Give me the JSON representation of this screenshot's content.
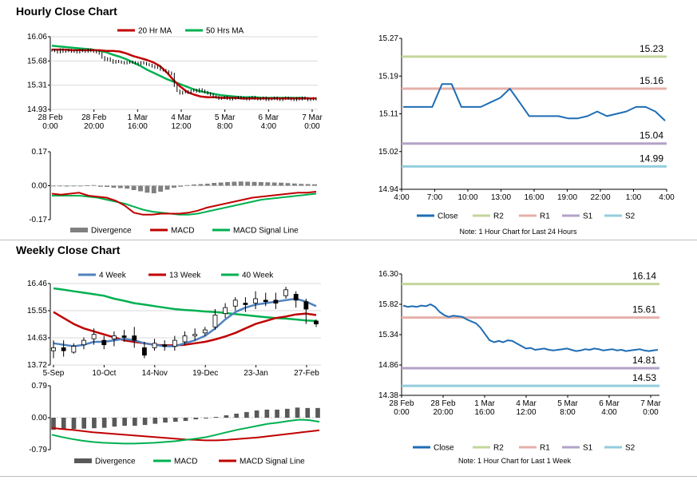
{
  "titles": {
    "hourly": "Hourly Close Chart",
    "weekly": "Weekly Close Chart"
  },
  "colors": {
    "price": "#000000",
    "ma20": "#c00000",
    "ma50": "#00b050",
    "close": "#1f6db4",
    "r2": "#c3d69b",
    "r1": "#e6b0aa",
    "s1": "#b3a2c7",
    "s2": "#93cddd",
    "divergence": "#808080",
    "divergence_dark": "#595959",
    "week4": "#4f81bd"
  },
  "chart_data": [
    {
      "id": "hourly_price",
      "type": "candlestick",
      "ylim": [
        14.93,
        16.06
      ],
      "yticks": [
        "16.06",
        "15.68",
        "15.31",
        "14.93"
      ],
      "xticks": [
        "28 Feb\n0:00",
        "28 Feb\n20:00",
        "1 Mar\n16:00",
        "4 Mar\n12:00",
        "5 Mar\n8:00",
        "6 Mar\n4:00",
        "7 Mar\n0:00"
      ],
      "legend": [
        "20 Hr MA",
        "50 Hrs MA"
      ],
      "price": [
        15.85,
        15.84,
        15.82,
        15.86,
        15.83,
        15.84,
        15.85,
        15.83,
        15.84,
        15.82,
        15.85,
        15.84,
        15.83,
        15.86,
        15.84,
        15.83,
        15.82,
        15.8,
        15.74,
        15.7,
        15.72,
        15.69,
        15.66,
        15.68,
        15.67,
        15.66,
        15.65,
        15.66,
        15.67,
        15.66,
        15.65,
        15.64,
        15.66,
        15.65,
        15.63,
        15.62,
        15.6,
        15.58,
        15.59,
        15.55,
        15.54,
        15.52,
        15.5,
        15.48,
        15.3,
        15.22,
        15.18,
        15.2,
        15.21,
        15.19,
        15.22,
        15.23,
        15.21,
        15.24,
        15.22,
        15.2,
        15.18,
        15.16,
        15.13,
        15.12,
        15.1,
        15.11,
        15.12,
        15.1,
        15.09,
        15.1,
        15.11,
        15.12,
        15.11,
        15.1,
        15.09,
        15.11,
        15.12,
        15.1,
        15.09,
        15.1,
        15.11,
        15.08,
        15.09,
        15.1,
        15.11,
        15.09,
        15.08,
        15.1,
        15.11,
        15.1,
        15.09,
        15.08,
        15.1,
        15.09,
        15.11,
        15.1,
        15.08,
        15.09,
        15.1,
        15.09
      ],
      "ma20": [
        15.86,
        15.86,
        15.86,
        15.85,
        15.85,
        15.85,
        15.85,
        15.85,
        15.84,
        15.84,
        15.83,
        15.8,
        15.76,
        15.73,
        15.7,
        15.66,
        15.6,
        15.5,
        15.38,
        15.28,
        15.2,
        15.16,
        15.13,
        15.12,
        15.12,
        15.11,
        15.11,
        15.11,
        15.1,
        15.1,
        15.1,
        15.1,
        15.1,
        15.1,
        15.1,
        15.1,
        15.1,
        15.1,
        15.1,
        15.1
      ],
      "ma50": [
        15.92,
        15.91,
        15.9,
        15.89,
        15.88,
        15.87,
        15.86,
        15.84,
        15.82,
        15.78,
        15.75,
        15.71,
        15.66,
        15.61,
        15.55,
        15.5,
        15.45,
        15.4,
        15.36,
        15.32,
        15.28,
        15.24,
        15.21,
        15.19,
        15.17,
        15.15,
        15.14,
        15.13,
        15.12,
        15.12,
        15.12,
        15.11,
        15.11,
        15.11,
        15.11,
        15.11,
        15.11,
        15.11,
        15.1,
        15.1
      ]
    },
    {
      "id": "hourly_macd",
      "type": "macd",
      "ylim": [
        -0.17,
        0.17
      ],
      "yticks": [
        "0.17",
        "0.00",
        "-0.17"
      ],
      "legend": [
        "Divergence",
        "MACD",
        "MACD Signal Line"
      ],
      "divergence": [
        0.0,
        0.0,
        -0.004,
        -0.003,
        0.0,
        0.002,
        0.003,
        -0.005,
        -0.006,
        -0.01,
        -0.012,
        -0.015,
        -0.022,
        -0.028,
        -0.035,
        -0.038,
        -0.03,
        -0.02,
        -0.01,
        -0.005,
        0.003,
        0.006,
        0.008,
        0.01,
        0.014,
        0.016,
        0.018,
        0.02,
        0.021,
        0.02,
        0.019,
        0.018,
        0.017,
        0.016,
        0.015,
        0.013,
        0.011,
        0.009,
        0.008,
        0.007
      ],
      "macd": [
        -0.04,
        -0.045,
        -0.04,
        -0.035,
        -0.05,
        -0.055,
        -0.06,
        -0.075,
        -0.1,
        -0.135,
        -0.145,
        -0.145,
        -0.14,
        -0.14,
        -0.14,
        -0.135,
        -0.125,
        -0.11,
        -0.1,
        -0.09,
        -0.08,
        -0.07,
        -0.06,
        -0.055,
        -0.05,
        -0.045,
        -0.04,
        -0.035,
        -0.035,
        -0.03
      ],
      "signal": [
        -0.05,
        -0.05,
        -0.05,
        -0.05,
        -0.055,
        -0.06,
        -0.07,
        -0.08,
        -0.09,
        -0.105,
        -0.12,
        -0.13,
        -0.135,
        -0.14,
        -0.145,
        -0.145,
        -0.14,
        -0.13,
        -0.12,
        -0.11,
        -0.1,
        -0.09,
        -0.08,
        -0.07,
        -0.065,
        -0.06,
        -0.055,
        -0.05,
        -0.045,
        -0.04
      ]
    },
    {
      "id": "hourly_levels",
      "type": "line",
      "ylim": [
        14.94,
        15.27
      ],
      "yticks": [
        "15.27",
        "15.19",
        "15.11",
        "15.02",
        "14.94"
      ],
      "xticks": [
        "4:00",
        "7:00",
        "10:00",
        "13:00",
        "16:00",
        "19:00",
        "22:00",
        "1:00",
        "4:00"
      ],
      "close": [
        15.12,
        15.12,
        15.12,
        15.12,
        15.17,
        15.17,
        15.12,
        15.12,
        15.12,
        15.13,
        15.14,
        15.16,
        15.13,
        15.1,
        15.1,
        15.1,
        15.1,
        15.095,
        15.095,
        15.1,
        15.11,
        15.1,
        15.105,
        15.11,
        15.12,
        15.12,
        15.11,
        15.09
      ],
      "levels": {
        "R2": 15.23,
        "R1": 15.16,
        "S1": 15.04,
        "S2": 14.99
      },
      "level_labels": {
        "R2": "15.23",
        "R1": "15.16",
        "S1": "15.04",
        "S2": "14.99"
      },
      "legend": [
        "Close",
        "R2",
        "R1",
        "S1",
        "S2"
      ],
      "note": "Note: 1 Hour Chart for Last 24 Hours"
    },
    {
      "id": "weekly_price",
      "type": "candlestick",
      "ylim": [
        13.72,
        16.46
      ],
      "yticks": [
        "16.46",
        "15.55",
        "14.63",
        "13.72"
      ],
      "xticks": [
        "5-Sep",
        "10-Oct",
        "14-Nov",
        "19-Dec",
        "23-Jan",
        "27-Feb"
      ],
      "legend": [
        "4 Week",
        "13 Week",
        "40 Week"
      ],
      "candles": [
        {
          "o": 14.2,
          "c": 14.3,
          "h": 14.55,
          "l": 13.95
        },
        {
          "o": 14.3,
          "c": 14.2,
          "h": 14.55,
          "l": 14.0
        },
        {
          "o": 14.15,
          "c": 14.35,
          "h": 14.45,
          "l": 14.1
        },
        {
          "o": 14.4,
          "c": 14.55,
          "h": 14.65,
          "l": 14.25
        },
        {
          "o": 14.6,
          "c": 14.75,
          "h": 14.95,
          "l": 14.4
        },
        {
          "o": 14.55,
          "c": 14.4,
          "h": 14.7,
          "l": 14.25
        },
        {
          "o": 14.6,
          "c": 14.7,
          "h": 14.85,
          "l": 14.35
        },
        {
          "o": 14.7,
          "c": 14.65,
          "h": 14.9,
          "l": 14.5
        },
        {
          "o": 14.7,
          "c": 14.55,
          "h": 15.0,
          "l": 14.3
        },
        {
          "o": 14.3,
          "c": 14.05,
          "h": 14.5,
          "l": 13.95
        },
        {
          "o": 14.3,
          "c": 14.45,
          "h": 14.6,
          "l": 14.2
        },
        {
          "o": 14.4,
          "c": 14.35,
          "h": 14.55,
          "l": 14.2
        },
        {
          "o": 14.35,
          "c": 14.55,
          "h": 14.7,
          "l": 14.2
        },
        {
          "o": 14.5,
          "c": 14.7,
          "h": 14.85,
          "l": 14.4
        },
        {
          "o": 14.7,
          "c": 14.75,
          "h": 14.95,
          "l": 14.55
        },
        {
          "o": 14.8,
          "c": 14.9,
          "h": 15.0,
          "l": 14.7
        },
        {
          "o": 15.0,
          "c": 15.4,
          "h": 15.6,
          "l": 14.9
        },
        {
          "o": 15.45,
          "c": 15.65,
          "h": 15.8,
          "l": 15.3
        },
        {
          "o": 15.7,
          "c": 15.9,
          "h": 16.0,
          "l": 15.55
        },
        {
          "o": 15.8,
          "c": 15.75,
          "h": 16.0,
          "l": 15.5
        },
        {
          "o": 15.8,
          "c": 15.95,
          "h": 16.2,
          "l": 15.6
        },
        {
          "o": 15.9,
          "c": 15.85,
          "h": 16.15,
          "l": 15.7
        },
        {
          "o": 15.9,
          "c": 15.8,
          "h": 16.15,
          "l": 15.6
        },
        {
          "o": 16.05,
          "c": 16.25,
          "h": 16.35,
          "l": 15.95
        },
        {
          "o": 16.1,
          "c": 15.9,
          "h": 16.2,
          "l": 15.65
        },
        {
          "o": 15.85,
          "c": 15.6,
          "h": 15.95,
          "l": 15.1
        },
        {
          "o": 15.2,
          "c": 15.1,
          "h": 15.25,
          "l": 15.0
        }
      ],
      "week4": [
        14.45,
        14.4,
        14.35,
        14.4,
        14.5,
        14.5,
        14.55,
        14.6,
        14.55,
        14.45,
        14.4,
        14.35,
        14.35,
        14.45,
        14.55,
        14.7,
        14.95,
        15.25,
        15.5,
        15.65,
        15.75,
        15.8,
        15.85,
        15.9,
        15.95,
        15.85,
        15.7
      ],
      "week13": [
        15.5,
        15.3,
        15.1,
        14.95,
        14.85,
        14.75,
        14.65,
        14.55,
        14.5,
        14.45,
        14.4,
        14.38,
        14.38,
        14.4,
        14.45,
        14.5,
        14.58,
        14.68,
        14.8,
        14.95,
        15.1,
        15.2,
        15.3,
        15.35,
        15.42,
        15.45,
        15.4
      ],
      "week40": [
        16.3,
        16.25,
        16.2,
        16.15,
        16.1,
        16.05,
        15.95,
        15.88,
        15.8,
        15.75,
        15.7,
        15.65,
        15.6,
        15.57,
        15.55,
        15.52,
        15.5,
        15.47,
        15.43,
        15.4,
        15.36,
        15.33,
        15.3,
        15.28,
        15.25,
        15.22,
        15.2
      ]
    },
    {
      "id": "weekly_macd",
      "type": "macd",
      "ylim": [
        -0.79,
        0.79
      ],
      "yticks": [
        "0.79",
        "0.00",
        "-0.79"
      ],
      "legend": [
        "Divergence",
        "MACD",
        "MACD Signal Line"
      ],
      "divergence": [
        -0.3,
        -0.28,
        -0.28,
        -0.27,
        -0.26,
        -0.25,
        -0.22,
        -0.2,
        -0.2,
        -0.18,
        -0.15,
        -0.12,
        -0.1,
        -0.08,
        -0.04,
        -0.02,
        0.02,
        0.06,
        0.1,
        0.14,
        0.18,
        0.2,
        0.2,
        0.22,
        0.25,
        0.24,
        0.24
      ],
      "macd": [
        -0.42,
        -0.48,
        -0.53,
        -0.57,
        -0.6,
        -0.62,
        -0.63,
        -0.64,
        -0.64,
        -0.63,
        -0.62,
        -0.6,
        -0.58,
        -0.55,
        -0.52,
        -0.48,
        -0.42,
        -0.36,
        -0.3,
        -0.25,
        -0.2,
        -0.15,
        -0.12,
        -0.08,
        -0.05,
        -0.06,
        -0.1
      ],
      "signal": [
        -0.25,
        -0.28,
        -0.3,
        -0.33,
        -0.36,
        -0.38,
        -0.4,
        -0.42,
        -0.44,
        -0.46,
        -0.48,
        -0.5,
        -0.52,
        -0.54,
        -0.55,
        -0.56,
        -0.56,
        -0.55,
        -0.53,
        -0.51,
        -0.49,
        -0.46,
        -0.43,
        -0.4,
        -0.37,
        -0.34,
        -0.31
      ]
    },
    {
      "id": "weekly_levels",
      "type": "line",
      "ylim": [
        14.38,
        16.3
      ],
      "yticks": [
        "16.30",
        "15.82",
        "15.34",
        "14.86",
        "14.38"
      ],
      "xticks": [
        "28 Feb\n0:00",
        "28 Feb\n20:00",
        "1 Mar\n16:00",
        "4 Mar\n12:00",
        "5 Mar\n8:00",
        "6 Mar\n4:00",
        "7 Mar\n0:00"
      ],
      "close": [
        15.8,
        15.78,
        15.79,
        15.78,
        15.8,
        15.79,
        15.82,
        15.78,
        15.7,
        15.65,
        15.62,
        15.64,
        15.63,
        15.62,
        15.58,
        15.55,
        15.52,
        15.45,
        15.35,
        15.25,
        15.22,
        15.24,
        15.22,
        15.25,
        15.24,
        15.2,
        15.16,
        15.12,
        15.13,
        15.1,
        15.11,
        15.12,
        15.1,
        15.09,
        15.1,
        15.11,
        15.12,
        15.1,
        15.08,
        15.09,
        15.11,
        15.1,
        15.12,
        15.11,
        15.09,
        15.1,
        15.11,
        15.09,
        15.1,
        15.08,
        15.09,
        15.1,
        15.11,
        15.09,
        15.08,
        15.09,
        15.1
      ],
      "levels": {
        "R2": 16.14,
        "R1": 15.61,
        "S1": 14.81,
        "S2": 14.53
      },
      "level_labels": {
        "R2": "16.14",
        "R1": "15.61",
        "S1": "14.81",
        "S2": "14.53"
      },
      "legend": [
        "Close",
        "R2",
        "R1",
        "S1",
        "S2"
      ],
      "note": "Note: 1 Hour Chart for Last 1 Week"
    }
  ]
}
